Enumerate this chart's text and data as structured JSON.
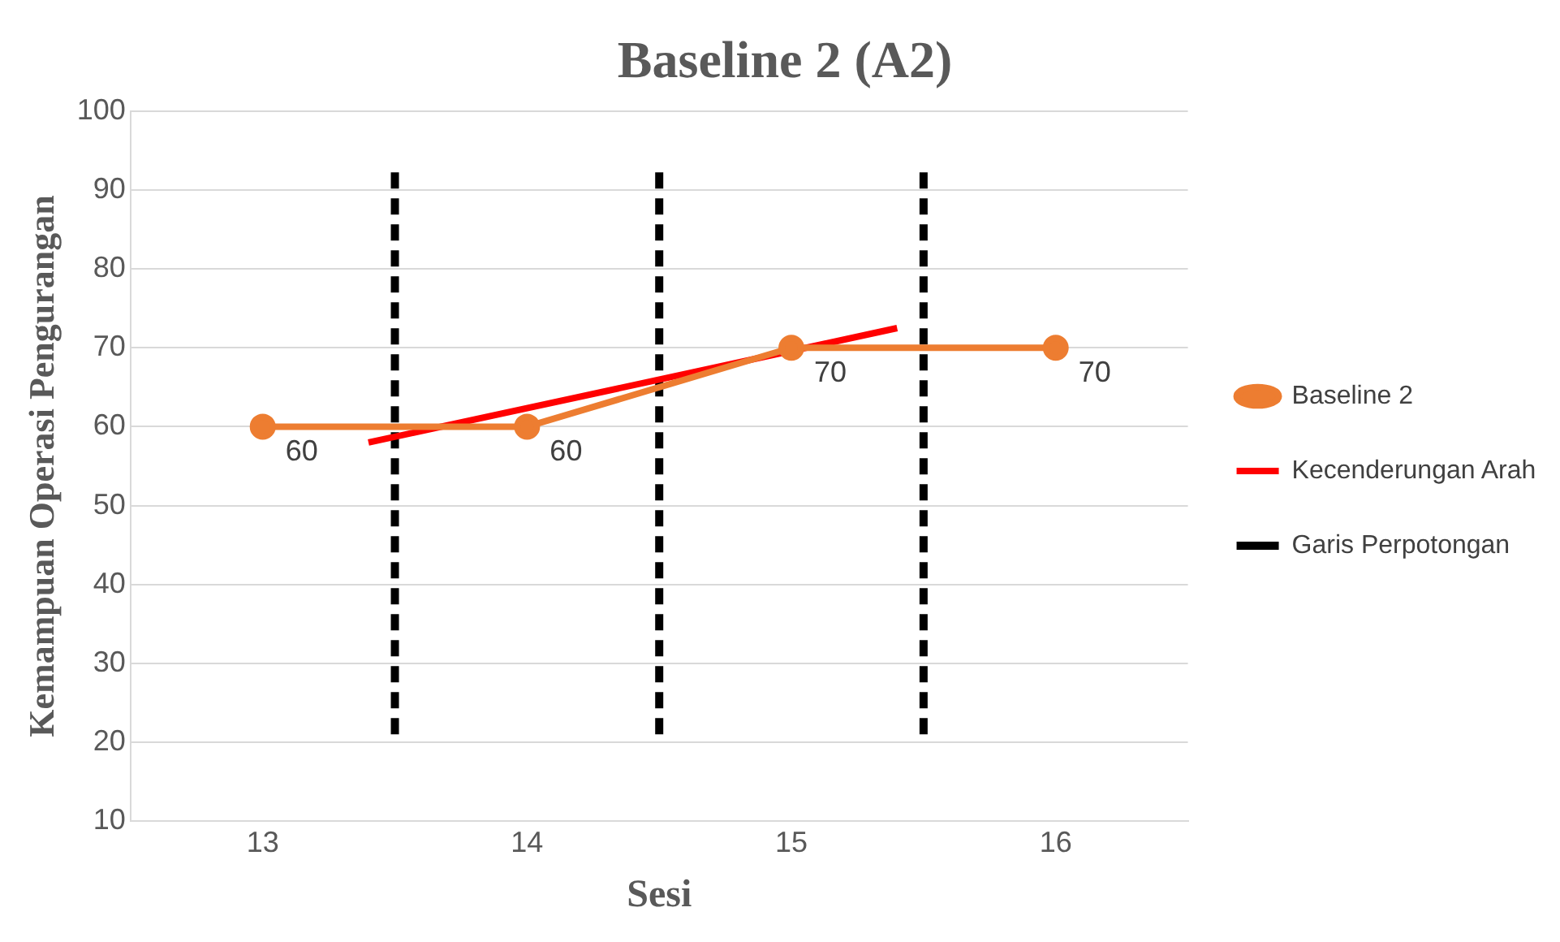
{
  "chart_data": {
    "type": "line",
    "title": "Baseline 2 (A2)",
    "xlabel": "Sesi",
    "ylabel": "Kemampuan Operasi Pengurangan",
    "x": [
      13,
      14,
      15,
      16
    ],
    "xlim": [
      12.5,
      16.5
    ],
    "xticks": [
      13,
      14,
      15,
      16
    ],
    "ylim": [
      10,
      100
    ],
    "yticks": [
      10,
      20,
      30,
      40,
      50,
      60,
      70,
      80,
      90,
      100
    ],
    "grid": "y",
    "legend": "right",
    "series": [
      {
        "name": "Baseline 2",
        "color": "#ed7d31",
        "values": [
          60,
          60,
          70,
          70
        ],
        "value_labels": [
          "60",
          "60",
          "70",
          "70"
        ],
        "marker": "circle",
        "line_style": "solid"
      },
      {
        "name": "Kecenderungan Arah",
        "color": "#ff0000",
        "x": [
          13.4,
          15.4
        ],
        "values": [
          58,
          72.5
        ],
        "marker": "none",
        "line_style": "solid"
      },
      {
        "name": "Garis Perpotongan",
        "color": "#000000",
        "x": [
          13.5,
          13.5
        ],
        "values": [
          21,
          93
        ],
        "marker": "none",
        "line_style": "dashed"
      },
      {
        "color": "#000000",
        "x": [
          14.5,
          14.5
        ],
        "values": [
          21,
          93
        ],
        "marker": "none",
        "line_style": "dashed"
      },
      {
        "color": "#000000",
        "x": [
          15.5,
          15.5
        ],
        "values": [
          21,
          93
        ],
        "marker": "none",
        "line_style": "dashed"
      }
    ]
  }
}
